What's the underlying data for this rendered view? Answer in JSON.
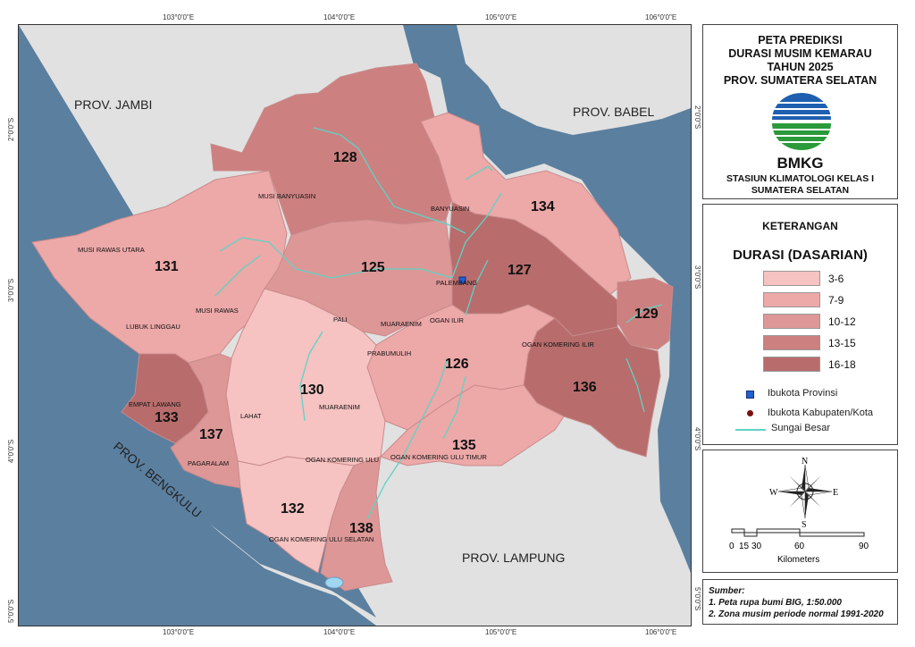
{
  "coords": {
    "top": [
      "103°0'0\"E",
      "104°0'0\"E",
      "105°0'0\"E",
      "106°0'0\"E"
    ],
    "bottom": [
      "103°0'0\"E",
      "104°0'0\"E",
      "105°0'0\"E",
      "106°0'0\"E"
    ],
    "left": [
      "2°0'0\"S",
      "3°0'0\"S",
      "4°0'0\"S",
      "5°0'0\"S"
    ],
    "right": [
      "2°0'0\"S",
      "3°0'0\"S",
      "4°0'0\"S",
      "5°0'0\"S"
    ]
  },
  "map": {
    "neighbors": {
      "jambi": "PROV. JAMBI",
      "babel": "PROV. BABEL",
      "bengkulu": "PROV. BENGKULU",
      "lampung": "PROV. LAMPUNG"
    },
    "zone_numbers": {
      "z128": "128",
      "z134": "134",
      "z131": "131",
      "z125": "125",
      "z127": "127",
      "z129": "129",
      "z126": "126",
      "z130": "130",
      "z136": "136",
      "z133": "133",
      "z137": "137",
      "z135": "135",
      "z132": "132",
      "z138": "138"
    },
    "places": {
      "musi_banyuasin": "MUSI BANYUASIN",
      "banyuasin": "BANYUASIN",
      "musi_rawas_utara": "MUSI RAWAS UTARA",
      "musi_rawas": "MUSI RAWAS",
      "lubuk_linggau": "LUBUK LINGGAU",
      "palembang": "PALEMBANG",
      "pali": "PALI",
      "muaraenim_n": "MUARAENIM",
      "ogan_ilir": "OGAN ILIR",
      "prabumulih": "PRABUMULIH",
      "ogan_komering_ilir": "OGAN KOMERING ILIR",
      "muaraenim_s": "MUARAENIM",
      "empat_lawang": "EMPAT LAWANG",
      "lahat": "LAHAT",
      "pagaralam": "PAGARALAM",
      "oku": "OGAN KOMERING ULU",
      "oku_timur": "OGAN KOMERING ULU TIMUR",
      "oku_selatan": "OGAN KOMERING ULU SELATAN"
    },
    "colors": {
      "water": "#5b7f9f",
      "land_outside": "#e1e1e1",
      "class_3_6": "#f6c2c2",
      "class_7_9": "#eda8a8",
      "class_10_12": "#dd9797",
      "class_13_15": "#cc8080",
      "class_16_18": "#b86c6c",
      "river": "#5fd3c4"
    }
  },
  "title": {
    "line1": "PETA PREDIKSI",
    "line2": "DURASI MUSIM KEMARAU",
    "line3": "TAHUN 2025",
    "line4": "PROV. SUMATERA SELATAN",
    "agency": "BMKG",
    "station1": "STASIUN KLIMATOLOGI KELAS I",
    "station2": "SUMATERA SELATAN"
  },
  "legend": {
    "heading": "KETERANGAN",
    "subheading": "DURASI (DASARIAN)",
    "classes": [
      {
        "label": "3-6",
        "color": "#f6c2c2"
      },
      {
        "label": "7-9",
        "color": "#eda8a8"
      },
      {
        "label": "10-12",
        "color": "#dd9797"
      },
      {
        "label": "13-15",
        "color": "#cc8080"
      },
      {
        "label": "16-18",
        "color": "#b86c6c"
      }
    ],
    "symbols": {
      "capital": "Ibukota Provinsi",
      "regency": "Ibukota Kabupaten/Kota",
      "river": "Sungai Besar"
    }
  },
  "compass": {
    "n": "N",
    "s": "S",
    "e": "E",
    "w": "W"
  },
  "scale": {
    "ticks": [
      "0",
      "15",
      "30",
      "60",
      "90"
    ],
    "unit": "Kilometers"
  },
  "source": {
    "heading": "Sumber:",
    "line1": "1. Peta rupa bumi BIG, 1:50.000",
    "line2": "2. Zona musim periode normal 1991-2020"
  }
}
